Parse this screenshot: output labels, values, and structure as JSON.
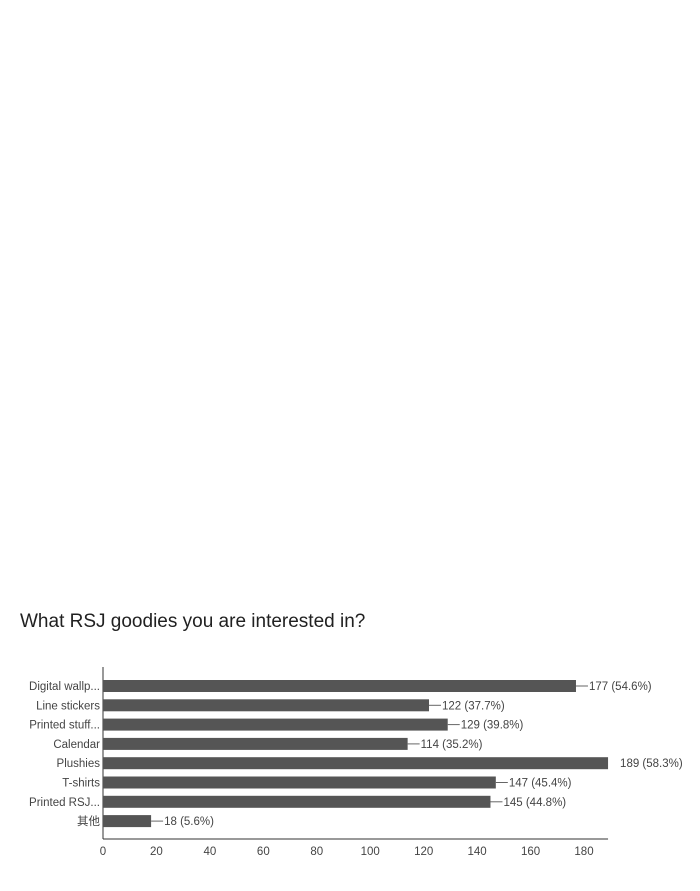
{
  "chart_data": {
    "type": "bar",
    "orientation": "horizontal",
    "title": "What RSJ goodies you are interested in?",
    "categories": [
      "Digital wallp...",
      "Line stickers",
      "Printed stuff...",
      "Calendar",
      "Plushies",
      "T-shirts",
      "Printed RSJ...",
      "其他"
    ],
    "values": [
      177,
      122,
      129,
      114,
      189,
      147,
      145,
      18
    ],
    "data_labels": [
      "177 (54.6%)",
      "122 (37.7%)",
      "129 (39.8%)",
      "114 (35.2%)",
      "189 (58.3%)",
      "147 (45.4%)",
      "145 (44.8%)",
      "18 (5.6%)"
    ],
    "xlim": [
      0,
      189
    ],
    "xticks": [
      0,
      20,
      40,
      60,
      80,
      100,
      120,
      140,
      160,
      180
    ],
    "grid": false,
    "bar_color": "#555555"
  }
}
